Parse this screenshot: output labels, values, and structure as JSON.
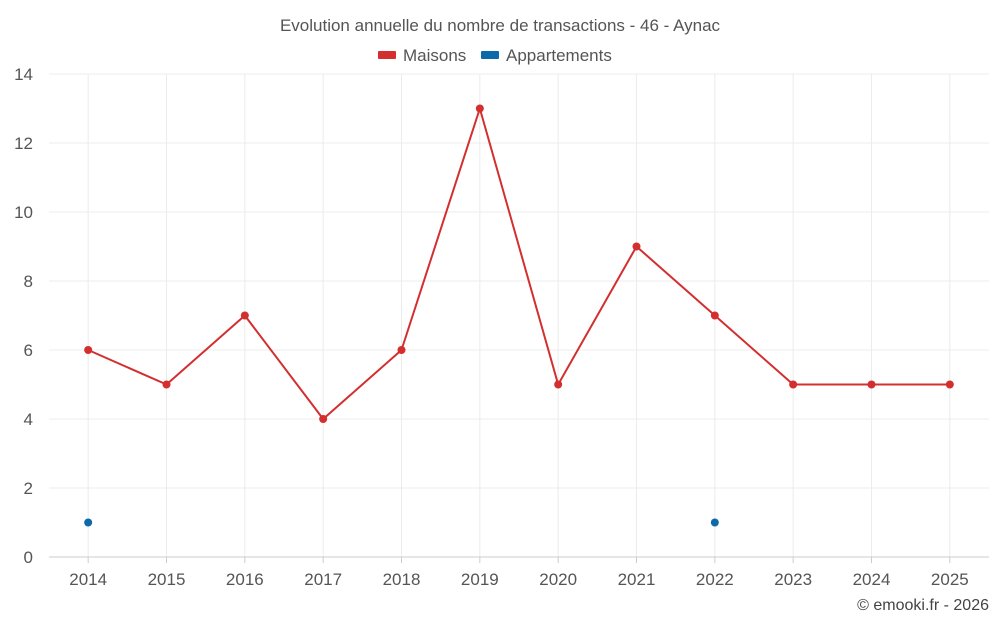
{
  "chart_data": {
    "type": "line",
    "title": "Evolution annuelle du nombre de transactions - 46 - Aynac",
    "categories": [
      "2014",
      "2015",
      "2016",
      "2017",
      "2018",
      "2019",
      "2020",
      "2021",
      "2022",
      "2023",
      "2024",
      "2025"
    ],
    "series": [
      {
        "name": "Maisons",
        "color": "#d32f2f",
        "values": [
          6,
          5,
          7,
          4,
          6,
          13,
          5,
          9,
          7,
          5,
          5,
          5
        ],
        "line": true
      },
      {
        "name": "Appartements",
        "color": "#0d6aa8",
        "values": [
          1,
          null,
          null,
          null,
          null,
          null,
          null,
          null,
          1,
          null,
          null,
          null
        ],
        "line": false
      }
    ],
    "ylim": [
      0,
      14
    ],
    "yticks": [
      0,
      2,
      4,
      6,
      8,
      10,
      12,
      14
    ],
    "grid": true,
    "legend": "top-center",
    "xlabel": "",
    "ylabel": ""
  },
  "credit": "© emooki.fr - 2026"
}
